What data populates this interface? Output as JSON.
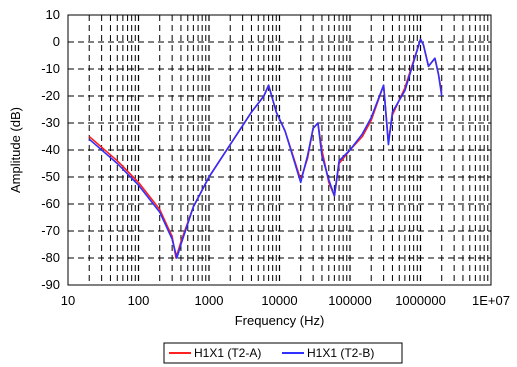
{
  "chart_data": {
    "type": "line",
    "title": "",
    "xlabel": "Frequency (Hz)",
    "ylabel": "Amplitude (dB)",
    "x_scale": "log",
    "xlim": [
      10,
      10000000
    ],
    "ylim": [
      -90,
      10
    ],
    "x_ticks": [
      10,
      100,
      1000,
      10000,
      100000,
      1000000,
      10000000
    ],
    "x_tick_labels": [
      "10",
      "100",
      "1000",
      "10000",
      "100000",
      "1000000",
      "1E+07"
    ],
    "y_ticks": [
      10,
      0,
      -10,
      -20,
      -30,
      -40,
      -50,
      -60,
      -70,
      -80,
      -90
    ],
    "y_tick_labels": [
      "10",
      "0",
      "-10",
      "-20",
      "-30",
      "-40",
      "-50",
      "-60",
      "-70",
      "-80",
      "-90"
    ],
    "grid": "dashed major and minor",
    "legend_position": "bottom",
    "series": [
      {
        "name": "H1X1 (T2-A)",
        "color": "#ff2020",
        "x": [
          20,
          50,
          100,
          200,
          300,
          340,
          400,
          600,
          1000,
          2000,
          4000,
          6000,
          7000,
          9000,
          12000,
          20000,
          25000,
          30000,
          35000,
          40000,
          50000,
          60000,
          70000,
          100000,
          150000,
          200000,
          300000,
          350000,
          400000,
          600000,
          1000000,
          1100000,
          1300000,
          1600000,
          1800000,
          2000000
        ],
        "y": [
          -35,
          -44,
          -52,
          -62,
          -72,
          -80,
          -74,
          -61,
          -50,
          -38,
          -26,
          -20,
          -16,
          -26,
          -33,
          -51,
          -43,
          -32,
          -30,
          -40,
          -52,
          -57,
          -45,
          -40,
          -35,
          -29,
          -16,
          -37,
          -27,
          -17,
          1,
          -1,
          -9,
          -6,
          -12,
          -19
        ]
      },
      {
        "name": "H1X1 (T2-B)",
        "color": "#3030ff",
        "x": [
          20,
          50,
          100,
          200,
          300,
          350,
          400,
          600,
          1000,
          2000,
          4000,
          6000,
          7000,
          9000,
          12000,
          20000,
          25000,
          30000,
          35000,
          40000,
          50000,
          60000,
          70000,
          100000,
          150000,
          200000,
          300000,
          350000,
          400000,
          600000,
          1000000,
          1100000,
          1300000,
          1600000,
          1800000,
          2000000
        ],
        "y": [
          -36,
          -45,
          -53,
          -63,
          -73,
          -80,
          -75,
          -61,
          -50,
          -38,
          -26,
          -20,
          -16,
          -26,
          -33,
          -52,
          -42,
          -32,
          -30,
          -42,
          -51,
          -57,
          -44,
          -40,
          -34,
          -28,
          -16,
          -38,
          -26,
          -18,
          1,
          -1,
          -9,
          -6,
          -12,
          -20
        ]
      }
    ]
  }
}
